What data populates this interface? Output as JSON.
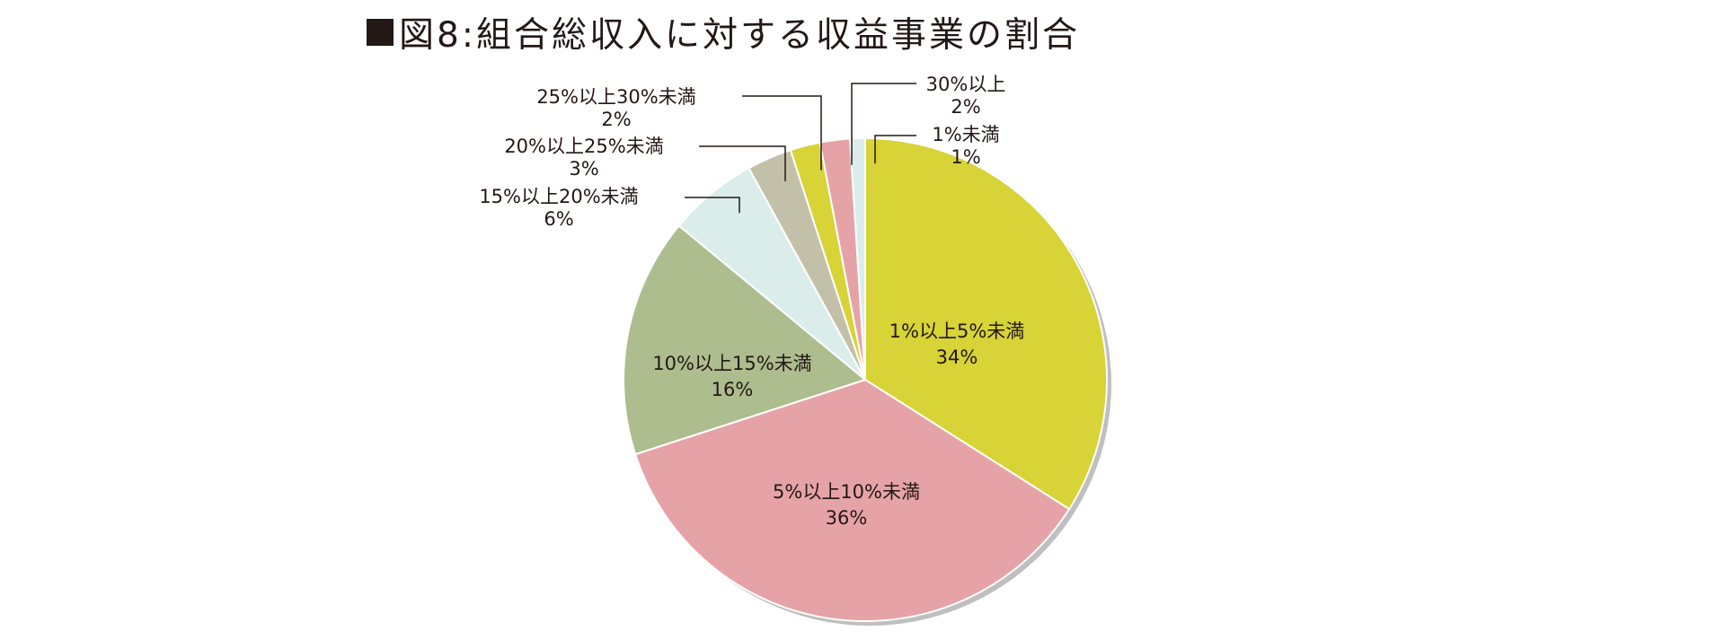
{
  "chart_data": {
    "type": "pie",
    "title": "図8:組合総収入に対する収益事業の割合",
    "slices": [
      {
        "label": "1%以上5%未満",
        "value": 34,
        "value_label": "34%",
        "color": "#d8d336",
        "label_pos": "inside"
      },
      {
        "label": "5%以上10%未満",
        "value": 36,
        "value_label": "36%",
        "color": "#e6a3a7",
        "label_pos": "inside"
      },
      {
        "label": "10%以上15%未満",
        "value": 16,
        "value_label": "16%",
        "color": "#adbd8e",
        "label_pos": "inside"
      },
      {
        "label": "15%以上20%未満",
        "value": 6,
        "value_label": "6%",
        "color": "#daedea",
        "label_pos": "outside"
      },
      {
        "label": "20%以上25%未満",
        "value": 3,
        "value_label": "3%",
        "color": "#c2c0a8",
        "label_pos": "outside"
      },
      {
        "label": "25%以上30%未満",
        "value": 2,
        "value_label": "2%",
        "color": "#d8d336",
        "label_pos": "outside"
      },
      {
        "label": "30%以上",
        "value": 2,
        "value_label": "2%",
        "color": "#e6a3a7",
        "label_pos": "outside"
      },
      {
        "label": "1%未満",
        "value": 1,
        "value_label": "1%",
        "color": "#daedea",
        "label_pos": "outside"
      }
    ],
    "start": "top",
    "direction": "clockwise"
  }
}
